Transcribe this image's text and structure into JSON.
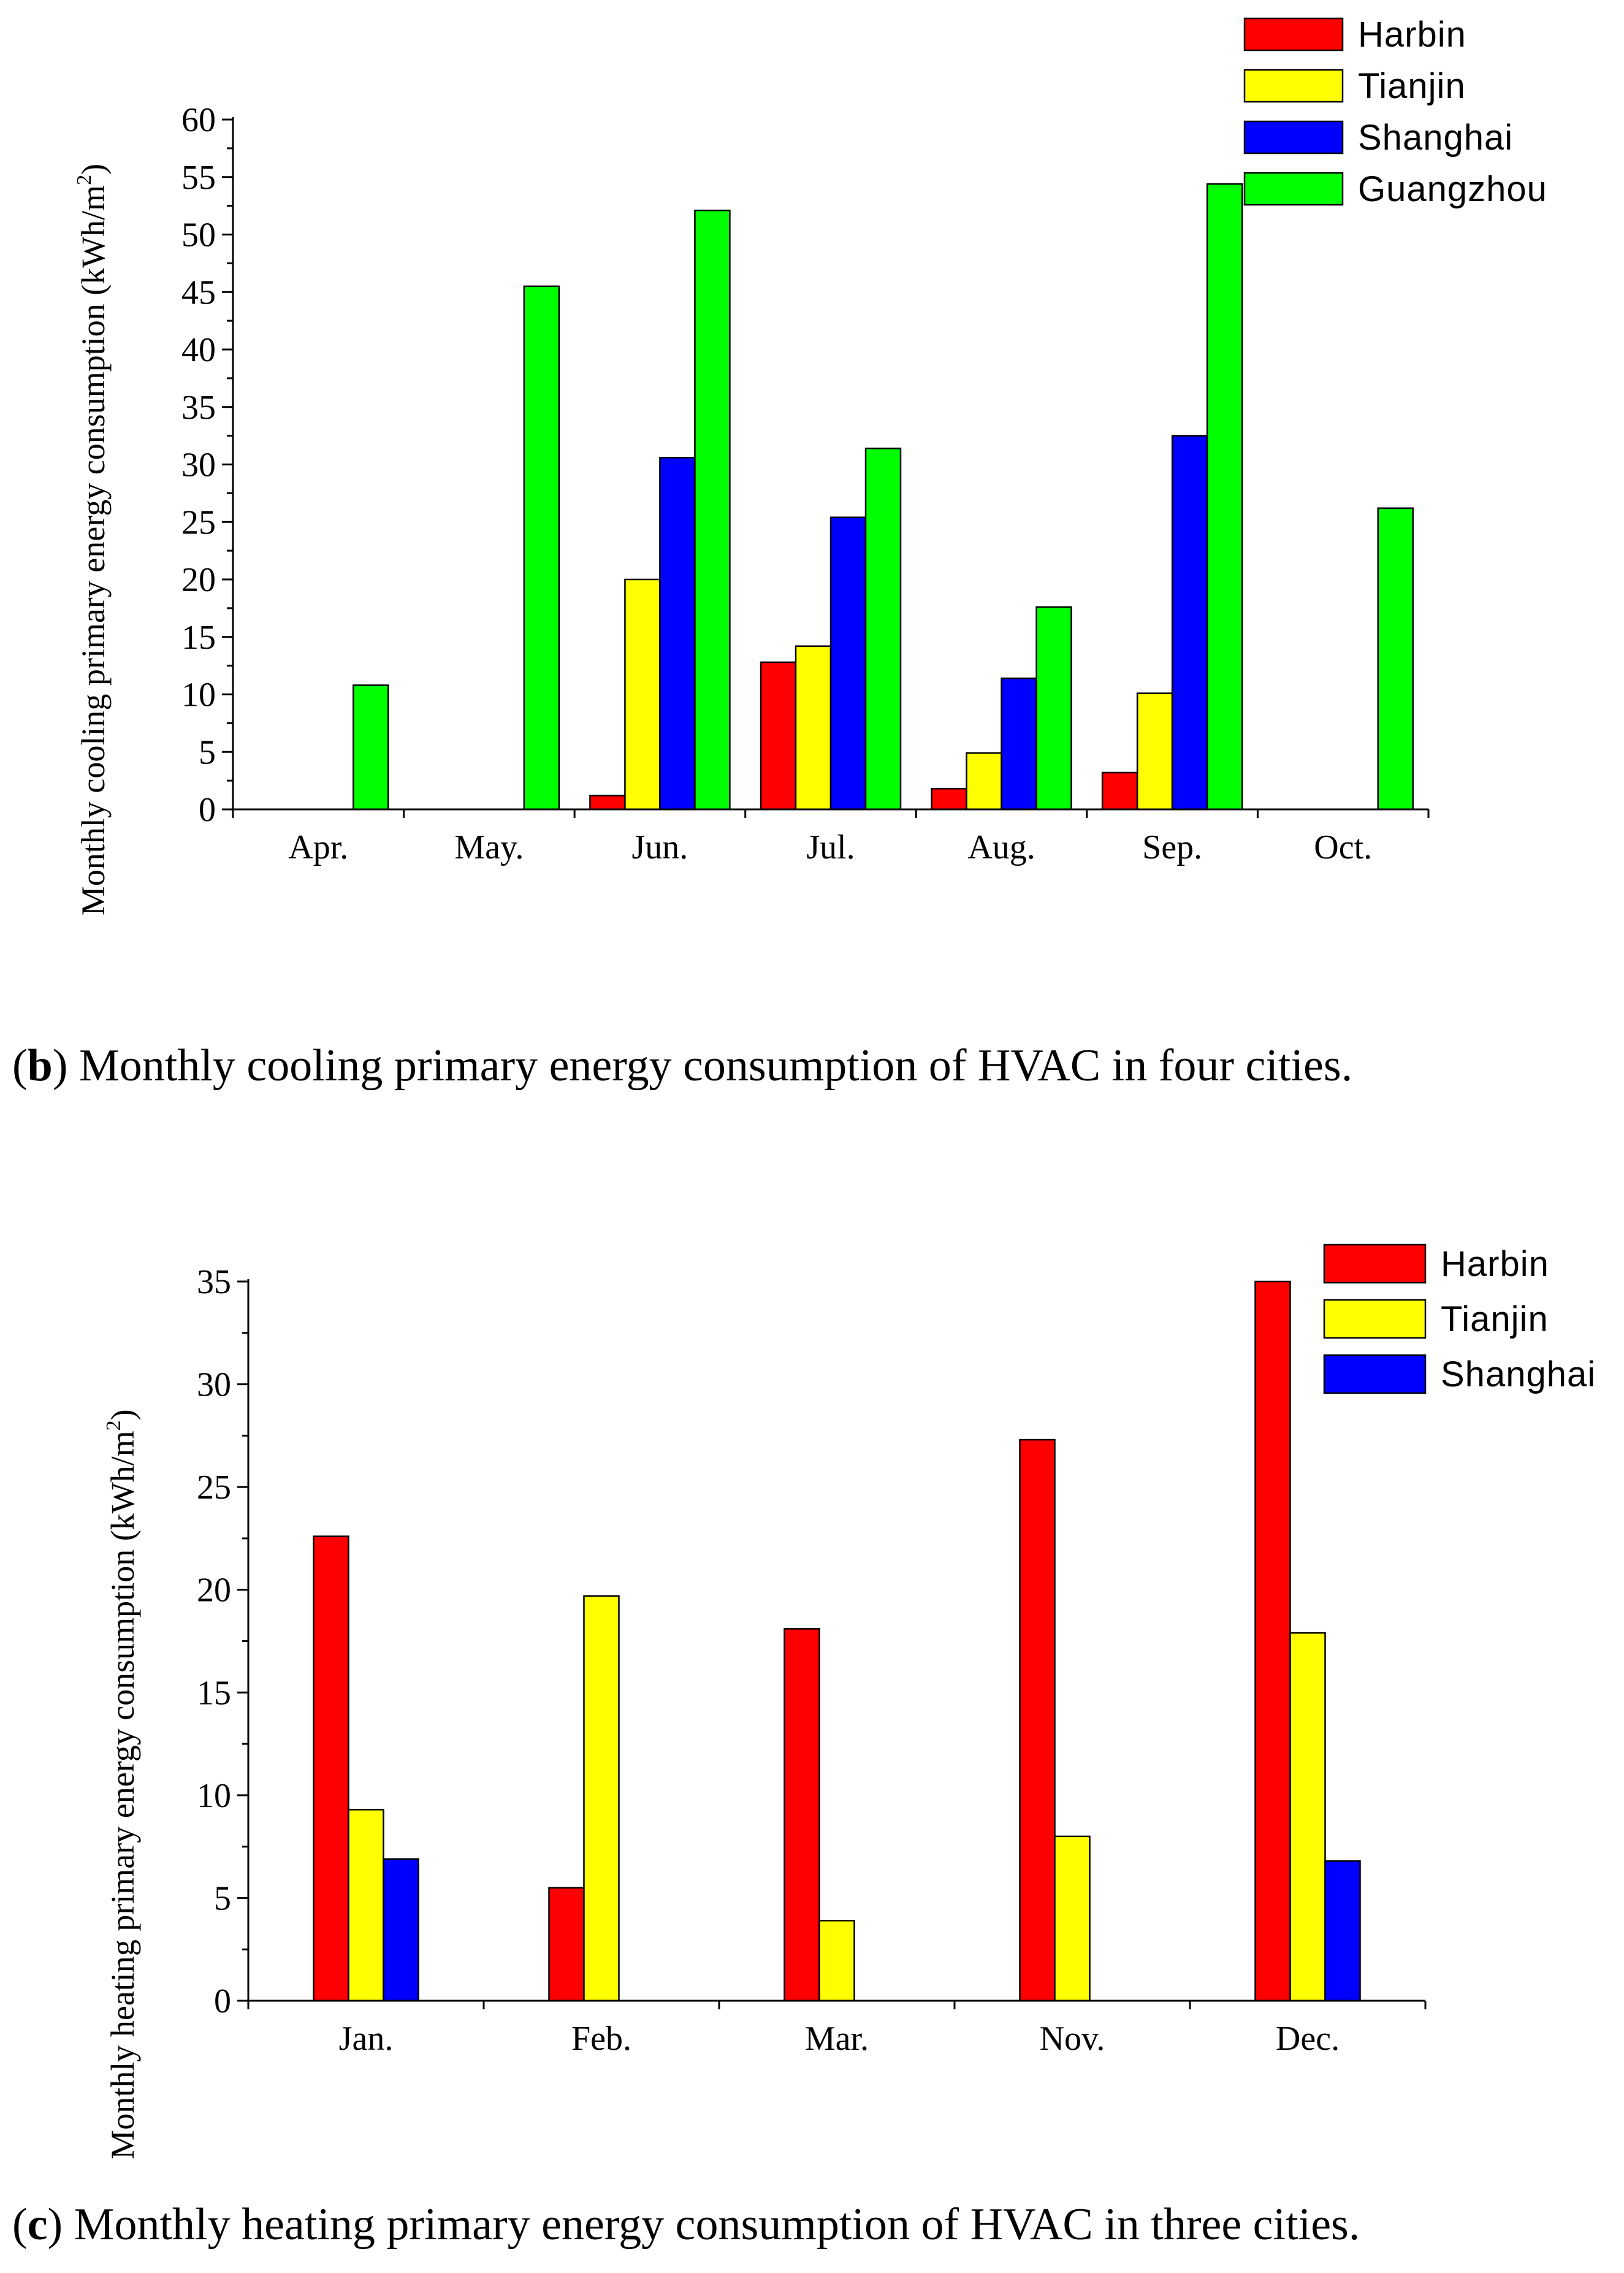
{
  "colors": {
    "Harbin": "#ff0000",
    "Tianjin": "#ffff00",
    "Shanghai": "#0000ff",
    "Guangzhou": "#00ff00"
  },
  "chart_data": [
    {
      "id": "b",
      "type": "bar",
      "title": "",
      "xlabel": "",
      "ylabel": "Monthly cooling primary energy consumption (kWh/m",
      "ylabel_sup": "2",
      "ylabel_end": ")",
      "ylim": [
        0,
        60
      ],
      "yticks": [
        "0",
        "5",
        "10",
        "15",
        "20",
        "25",
        "30",
        "35",
        "40",
        "45",
        "50",
        "55",
        "60"
      ],
      "categories": [
        "Apr.",
        "May.",
        "Jun.",
        "Jul.",
        "Aug.",
        "Sep.",
        "Oct."
      ],
      "series": [
        {
          "name": "Harbin",
          "values": [
            0,
            0,
            1.2,
            12.8,
            1.8,
            3.2,
            0
          ]
        },
        {
          "name": "Tianjin",
          "values": [
            0,
            0,
            20.0,
            14.2,
            4.9,
            10.1,
            0
          ]
        },
        {
          "name": "Shanghai",
          "values": [
            0,
            0,
            30.6,
            25.4,
            11.4,
            32.5,
            0
          ]
        },
        {
          "name": "Guangzhou",
          "values": [
            10.8,
            45.5,
            52.1,
            31.4,
            17.6,
            54.4,
            26.2
          ]
        }
      ],
      "legend": "top-right",
      "caption_label": "b",
      "caption_text": ") Monthly cooling primary energy consumption of HVAC in four cities."
    },
    {
      "id": "c",
      "type": "bar",
      "title": "",
      "xlabel": "",
      "ylabel": "Monthly heating primary energy consumption (kWh/m",
      "ylabel_sup": "2",
      "ylabel_end": ")",
      "ylim": [
        0,
        35
      ],
      "yticks": [
        "0",
        "5",
        "10",
        "15",
        "20",
        "25",
        "30",
        "35"
      ],
      "categories": [
        "Jan.",
        "Feb.",
        "Mar.",
        "Nov.",
        "Dec."
      ],
      "series": [
        {
          "name": "Harbin",
          "values": [
            22.6,
            5.5,
            18.1,
            27.3,
            35.0
          ]
        },
        {
          "name": "Tianjin",
          "values": [
            9.3,
            19.7,
            3.9,
            8.0,
            17.9
          ]
        },
        {
          "name": "Shanghai",
          "values": [
            6.9,
            0,
            0,
            0,
            6.8
          ]
        }
      ],
      "legend": "top-right",
      "caption_label": "c",
      "caption_text": ") Monthly heating primary energy consumption of HVAC in three cities."
    }
  ]
}
